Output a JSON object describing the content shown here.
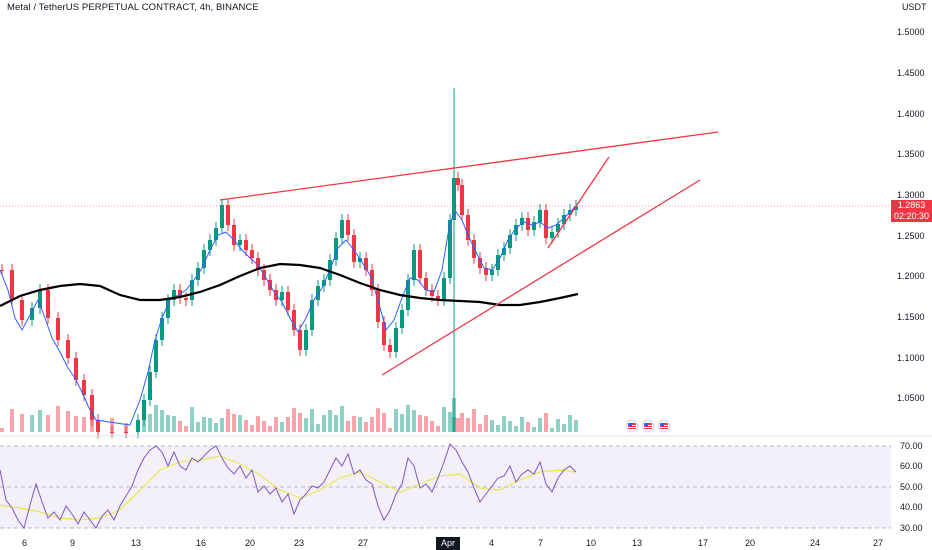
{
  "header": {
    "title": "Metal / TetherUS PERPETUAL CONTRACT, 4h, BINANCE",
    "currency": "USDT"
  },
  "price_axis": {
    "ticks": [
      "1.5000",
      "1.4500",
      "1.4000",
      "1.3500",
      "1.3000",
      "1.2500",
      "1.2000",
      "1.1500",
      "1.1000",
      "1.0500"
    ],
    "last_price": "1.2863",
    "countdown": "02:20:30"
  },
  "rsi_axis": {
    "ticks": [
      "70.00",
      "60.00",
      "50.00",
      "40.00",
      "30.00"
    ]
  },
  "time_axis": {
    "labels": [
      "6",
      "9",
      "13",
      "16",
      "20",
      "23",
      "27",
      "Apr",
      "4",
      "7",
      "10",
      "13",
      "17",
      "20",
      "24",
      "27"
    ]
  },
  "colors": {
    "up": "#089981",
    "down": "#f23645",
    "ma_fast": "#2962ff",
    "ma_slow": "#000000",
    "trendline": "#f23645",
    "rsi": "#7e57c2",
    "rsi_ma": "#e9e94f"
  },
  "events": [
    "us-flag-icon",
    "us-flag-icon",
    "us-flag-icon"
  ]
}
